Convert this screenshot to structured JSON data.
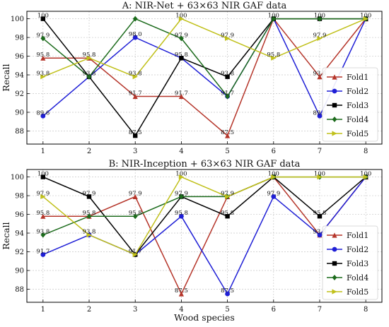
{
  "chart_data": [
    {
      "type": "line",
      "title": "A: NIR-Net + 63×63 NIR GAF data",
      "xlabel": "",
      "ylabel": "Recall",
      "x": [
        1,
        2,
        3,
        4,
        5,
        6,
        7,
        8
      ],
      "xlim": [
        0.65,
        8.35
      ],
      "ylim": [
        86.6,
        100.8
      ],
      "yticks": [
        88,
        90,
        92,
        94,
        96,
        98,
        100
      ],
      "grid": true,
      "legend_position": "lower right",
      "series": [
        {
          "name": "Fold1",
          "color": "#b5352a",
          "marker": "triangle",
          "values": [
            95.8,
            95.8,
            91.7,
            91.7,
            87.5,
            100,
            93.8,
            100
          ]
        },
        {
          "name": "Fold2",
          "color": "#1f1fd6",
          "marker": "circle",
          "values": [
            89.6,
            93.8,
            98.0,
            95.8,
            91.7,
            100,
            89.6,
            100
          ]
        },
        {
          "name": "Fold3",
          "color": "#000000",
          "marker": "square",
          "values": [
            100,
            93.8,
            87.5,
            95.8,
            93.8,
            100,
            100,
            100
          ]
        },
        {
          "name": "Fold4",
          "color": "#1c6b1c",
          "marker": "diamond",
          "values": [
            97.9,
            93.8,
            100,
            97.9,
            91.7,
            100,
            100,
            100
          ]
        },
        {
          "name": "Fold5",
          "color": "#c0c01a",
          "marker": "triangle-right",
          "values": [
            93.8,
            95.8,
            93.8,
            100,
            97.9,
            95.8,
            97.9,
            100
          ]
        }
      ],
      "data_labels": [
        {
          "x": 1,
          "text": "100",
          "y": 100
        },
        {
          "x": 1,
          "text": "97.9",
          "y": 97.9
        },
        {
          "x": 1,
          "text": "95.8",
          "y": 95.8
        },
        {
          "x": 1,
          "text": "93.8",
          "y": 93.8
        },
        {
          "x": 1,
          "text": "89.6",
          "y": 89.6
        },
        {
          "x": 2,
          "text": "95.8",
          "y": 95.8
        },
        {
          "x": 2,
          "text": "93.8",
          "y": 93.8
        },
        {
          "x": 3,
          "text": "98.0",
          "y": 98.0
        },
        {
          "x": 3,
          "text": "93.8",
          "y": 93.8
        },
        {
          "x": 3,
          "text": "91.7",
          "y": 91.7
        },
        {
          "x": 3,
          "text": "87.5",
          "y": 87.5
        },
        {
          "x": 4,
          "text": "100",
          "y": 100
        },
        {
          "x": 4,
          "text": "97.9",
          "y": 97.9
        },
        {
          "x": 4,
          "text": "95.8",
          "y": 95.8
        },
        {
          "x": 4,
          "text": "91.7",
          "y": 91.7
        },
        {
          "x": 5,
          "text": "97.9",
          "y": 97.9
        },
        {
          "x": 5,
          "text": "93.8",
          "y": 93.8
        },
        {
          "x": 5,
          "text": "91.7",
          "y": 91.7
        },
        {
          "x": 5,
          "text": "87.5",
          "y": 87.5
        },
        {
          "x": 6,
          "text": "100",
          "y": 100
        },
        {
          "x": 6,
          "text": "95.8",
          "y": 95.8
        },
        {
          "x": 7,
          "text": "100",
          "y": 100
        },
        {
          "x": 7,
          "text": "97.9",
          "y": 97.9
        },
        {
          "x": 7,
          "text": "93.8",
          "y": 93.8
        },
        {
          "x": 7,
          "text": "89.6",
          "y": 89.6
        },
        {
          "x": 8,
          "text": "100",
          "y": 100
        }
      ]
    },
    {
      "type": "line",
      "title": "B: NIR-Inception + 63×63 NIR GAF data",
      "xlabel": "Wood species",
      "ylabel": "Recall",
      "x": [
        1,
        2,
        3,
        4,
        5,
        6,
        7,
        8
      ],
      "xlim": [
        0.65,
        8.35
      ],
      "ylim": [
        86.6,
        100.8
      ],
      "yticks": [
        88,
        90,
        92,
        94,
        96,
        98,
        100
      ],
      "grid": true,
      "legend_position": "lower right",
      "series": [
        {
          "name": "Fold1",
          "color": "#b5352a",
          "marker": "triangle",
          "values": [
            95.8,
            95.8,
            97.9,
            87.5,
            97.9,
            100,
            93.8,
            100
          ]
        },
        {
          "name": "Fold2",
          "color": "#1f1fd6",
          "marker": "circle",
          "values": [
            91.7,
            93.8,
            91.7,
            95.8,
            87.5,
            97.9,
            93.8,
            100
          ]
        },
        {
          "name": "Fold3",
          "color": "#000000",
          "marker": "square",
          "values": [
            100,
            97.9,
            91.7,
            97.9,
            95.8,
            100,
            95.8,
            100
          ]
        },
        {
          "name": "Fold4",
          "color": "#1c6b1c",
          "marker": "diamond",
          "values": [
            93.8,
            95.8,
            95.8,
            97.9,
            97.9,
            100,
            100,
            100
          ]
        },
        {
          "name": "Fold5",
          "color": "#c0c01a",
          "marker": "triangle-right",
          "values": [
            97.9,
            93.8,
            91.7,
            100,
            97.9,
            100,
            100,
            100
          ]
        }
      ],
      "data_labels": [
        {
          "x": 1,
          "text": "100",
          "y": 100
        },
        {
          "x": 1,
          "text": "97.9",
          "y": 97.9
        },
        {
          "x": 1,
          "text": "95.8",
          "y": 95.8
        },
        {
          "x": 1,
          "text": "93.8",
          "y": 93.8
        },
        {
          "x": 1,
          "text": "91.7",
          "y": 91.7
        },
        {
          "x": 2,
          "text": "97.9",
          "y": 97.9
        },
        {
          "x": 2,
          "text": "95.8",
          "y": 95.8
        },
        {
          "x": 2,
          "text": "93.8",
          "y": 93.8
        },
        {
          "x": 3,
          "text": "97.9",
          "y": 97.9
        },
        {
          "x": 3,
          "text": "95.8",
          "y": 95.8
        },
        {
          "x": 3,
          "text": "91.7",
          "y": 91.7
        },
        {
          "x": 4,
          "text": "100",
          "y": 100
        },
        {
          "x": 4,
          "text": "97.9",
          "y": 97.9
        },
        {
          "x": 4,
          "text": "95.8",
          "y": 95.8
        },
        {
          "x": 4,
          "text": "87.5",
          "y": 87.5
        },
        {
          "x": 5,
          "text": "97.9",
          "y": 97.9
        },
        {
          "x": 5,
          "text": "95.8",
          "y": 95.8
        },
        {
          "x": 5,
          "text": "87.5",
          "y": 87.5
        },
        {
          "x": 6,
          "text": "100",
          "y": 100
        },
        {
          "x": 6,
          "text": "97.9",
          "y": 97.9
        },
        {
          "x": 7,
          "text": "100",
          "y": 100
        },
        {
          "x": 7,
          "text": "95.8",
          "y": 95.8
        },
        {
          "x": 7,
          "text": "93.8",
          "y": 93.8
        },
        {
          "x": 8,
          "text": "100",
          "y": 100
        }
      ]
    }
  ]
}
